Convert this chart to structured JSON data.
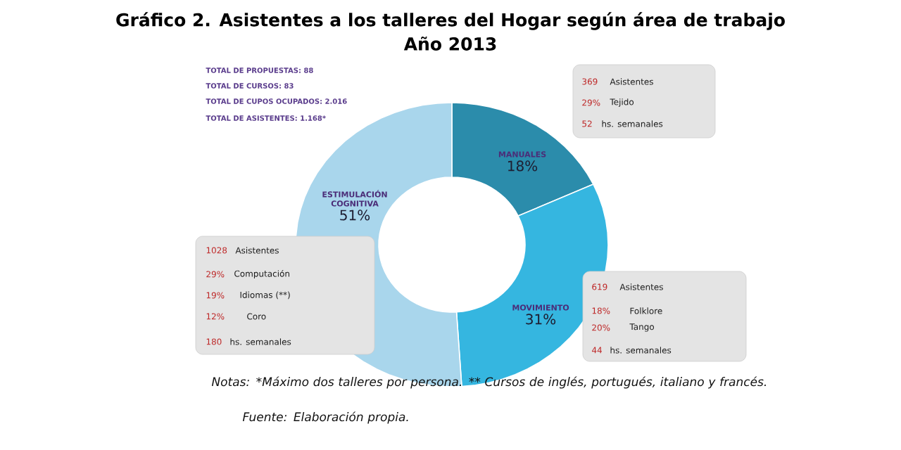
{
  "chart_data": {
    "type": "donut",
    "title": "Gráfico 2. Asistentes a los talleres del Hogar según área de trabajo",
    "subtitle": "Año 2013",
    "categories": [
      "MANUALES",
      "MOVIMIENTO",
      "ESTIMULACIÓN COGNITIVA"
    ],
    "values": [
      18,
      31,
      51
    ],
    "value_labels": [
      "18%",
      "31%",
      "51%"
    ],
    "colors": [
      "#2b8cab",
      "#35b6e0",
      "#a9d6ec"
    ],
    "annotations": [
      "TOTAL DE PROPUESTAS: 88",
      "TOTAL DE CURSOS: 83",
      "TOTAL DE CUPOS OCUPADOS: 2.016",
      "TOTAL DE ASISTENTES: 1.168*",
      "369",
      "Asistentes",
      "29%",
      "Tejido",
      "52",
      "hs. semanales",
      "1028",
      "Asistentes",
      "29%",
      "Computación",
      "19%",
      "Idiomas (**)",
      "12%",
      "Coro",
      "180",
      "hs. semanales",
      "619",
      "Asistentes",
      "18%",
      "Folklore",
      "20%",
      "Tango",
      "44",
      "hs. semanales",
      "Notas: *Máximo dos talleres por persona. ** Cursos de inglés, portugués, italiano y francés.",
      "Fuente: Elaboración propia."
    ]
  }
}
